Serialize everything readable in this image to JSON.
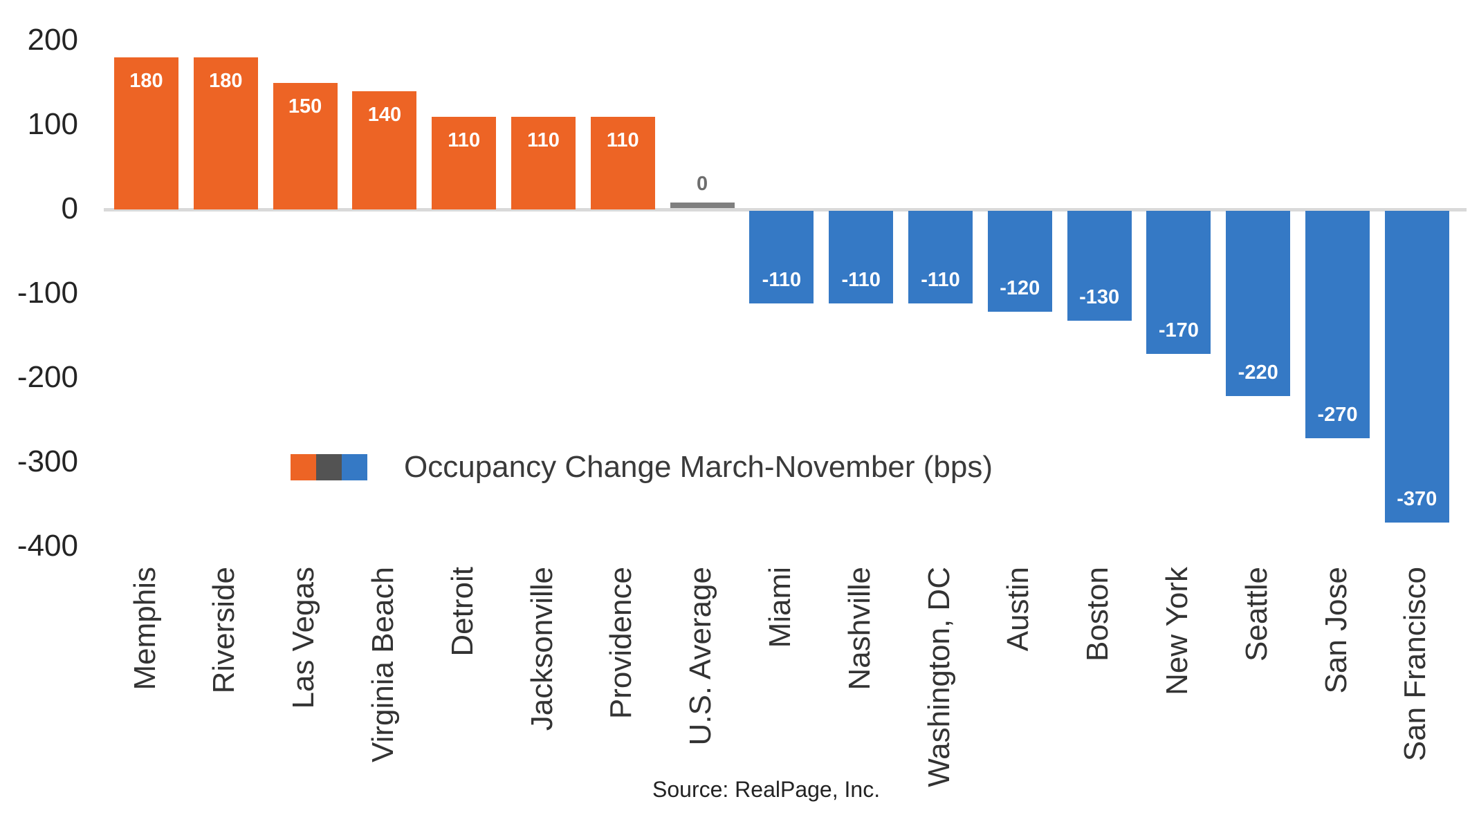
{
  "chart_data": {
    "type": "bar",
    "title": "",
    "legend_label": "Occupancy Change March-November (bps)",
    "source": "Source: RealPage, Inc.",
    "categories": [
      "Memphis",
      "Riverside",
      "Las Vegas",
      "Virginia Beach",
      "Detroit",
      "Jacksonville",
      "Providence",
      "U.S. Average",
      "Miami",
      "Nashville",
      "Washington, DC",
      "Austin",
      "Boston",
      "New York",
      "Seattle",
      "San Jose",
      "San Francisco"
    ],
    "values": [
      180,
      180,
      150,
      140,
      110,
      110,
      110,
      0,
      -110,
      -110,
      -110,
      -120,
      -130,
      -170,
      -220,
      -270,
      -370
    ],
    "bar_labels": [
      "180",
      "180",
      "150",
      "140",
      "110",
      "110",
      "110",
      "0",
      "-110",
      "-110",
      "-110",
      "-120",
      "-130",
      "-170",
      "-220",
      "-270",
      "-370"
    ],
    "y_ticks": [
      200,
      100,
      0,
      -100,
      -200,
      -300,
      -400
    ],
    "ylim": [
      -400,
      200
    ],
    "xlabel": "",
    "ylabel": "",
    "grid": "off",
    "legend_position": "bottom-left-inside",
    "legend_swatches": [
      "#ed6425",
      "#535353",
      "#3579c5"
    ],
    "colors": {
      "positive_bar": "#ed6425",
      "negative_bar": "#3579c5",
      "zero_bar": "#7f7f7f",
      "zero_label": "#6d6d6d",
      "bar_value_label": "#ffffff",
      "axis_line": "#d9d9d9",
      "tick_label": "#242424",
      "category_label": "#333333",
      "legend_text": "#3a3a3a",
      "source_text": "#232323"
    }
  }
}
